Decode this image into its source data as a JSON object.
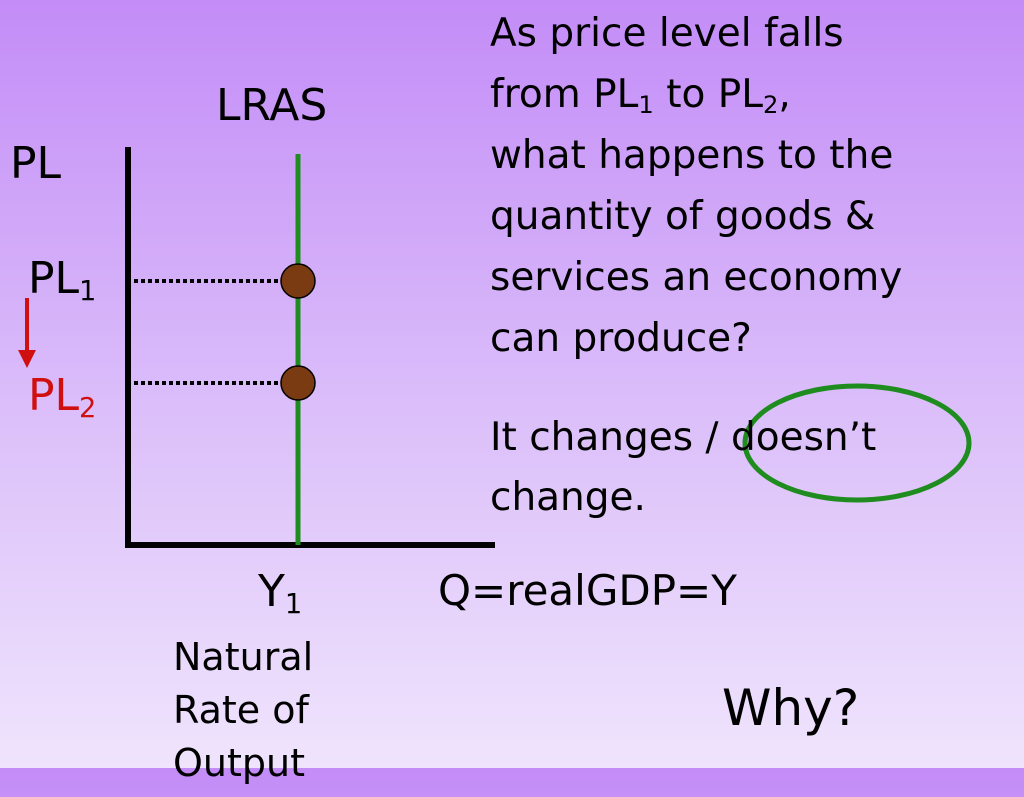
{
  "graph": {
    "curve_label": "LRAS",
    "y_axis_label": "PL",
    "x_axis_label": "Q=realGDP=Y",
    "price_levels": [
      {
        "base": "PL",
        "sub": "1"
      },
      {
        "base": "PL",
        "sub": "2"
      }
    ],
    "output_label": {
      "base": "Y",
      "sub": "1"
    },
    "output_note": [
      "Natural",
      "Rate of",
      "Output"
    ]
  },
  "question": {
    "lines": [
      [
        {
          "text": "As price level falls"
        }
      ],
      [
        {
          "text": "from PL"
        },
        {
          "sub": "1"
        },
        {
          "text": " to PL"
        },
        {
          "sub": "2"
        },
        {
          "text": ","
        }
      ],
      [
        {
          "text": "what happens to the"
        }
      ],
      [
        {
          "text": "quantity of goods &"
        }
      ],
      [
        {
          "text": "services an economy"
        }
      ],
      [
        {
          "text": "can produce?"
        }
      ]
    ]
  },
  "answer": [
    "It changes / doesn’t",
    "change."
  ],
  "prompt": "Why?"
}
